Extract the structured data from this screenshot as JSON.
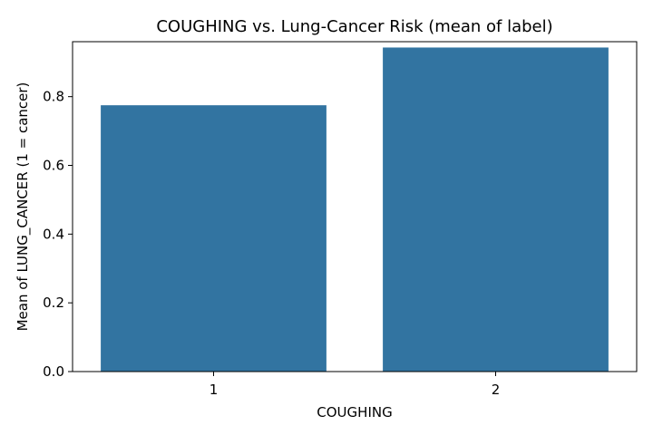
{
  "chart_data": {
    "type": "bar",
    "title": "COUGHING vs. Lung-Cancer Risk (mean of label)",
    "xlabel": "COUGHING",
    "ylabel": "Mean of LUNG_CANCER (1 = cancer)",
    "categories": [
      "1",
      "2"
    ],
    "values": [
      0.775,
      0.943
    ],
    "ylim": [
      0,
      0.96
    ],
    "yticks": [
      "0.0",
      "0.2",
      "0.4",
      "0.6",
      "0.8"
    ],
    "bar_color": "#3274a1",
    "grid": false,
    "legend": "none"
  }
}
